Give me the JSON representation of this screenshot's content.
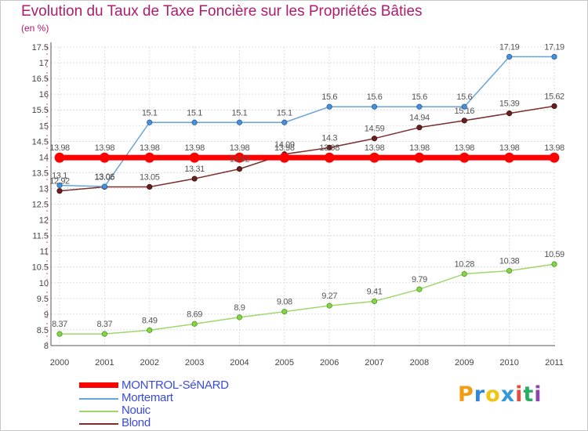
{
  "title": "Evolution du Taux de Taxe Foncière sur les Propriétés Bâties",
  "unit_label": "(en %)",
  "logo": {
    "text": "Proxiti",
    "letters": [
      "P",
      "r",
      "o",
      "x",
      "i",
      "t",
      "i"
    ],
    "colors": [
      "#f39c12",
      "#2e86de",
      "#f1c40f",
      "#3498db",
      "#e74c3c",
      "#27ae60",
      "#8e44ad"
    ]
  },
  "chart_data": {
    "type": "line",
    "title": "Evolution du Taux de Taxe Foncière sur les Propriétés Bâties",
    "ylabel": "(en %)",
    "xlabel": "",
    "x": [
      "2000",
      "2001",
      "2002",
      "2003",
      "2004",
      "2005",
      "2006",
      "2007",
      "2008",
      "2009",
      "2010",
      "2011"
    ],
    "ylim": [
      8,
      17.5
    ],
    "yticks": [
      "8",
      "8.5",
      "9",
      "9.5",
      "10",
      "10.5",
      "11",
      "11.5",
      "12",
      "12.5",
      "13",
      "13.5",
      "14",
      "14.5",
      "15",
      "15.5",
      "16",
      "16.5",
      "17",
      "17.5"
    ],
    "grid": true,
    "legend_position": "bottom-left",
    "series": [
      {
        "name": "MONTROL-SéNARD",
        "color": "#ff0000",
        "values": [
          13.98,
          13.98,
          13.98,
          13.98,
          13.98,
          13.98,
          13.98,
          13.98,
          13.98,
          13.98,
          13.98,
          13.98
        ],
        "labels": [
          "13.98",
          "13.98",
          "13.98",
          "13.98",
          "13.98",
          "13.98",
          "13.98",
          "13.98",
          "13.98",
          "13.98",
          "13.98",
          "13.98"
        ]
      },
      {
        "name": "Mortemart",
        "color": "#6aa3d8",
        "values": [
          13.1,
          13.06,
          15.1,
          15.1,
          15.1,
          15.1,
          15.6,
          15.6,
          15.6,
          15.6,
          17.19,
          17.19
        ],
        "labels": [
          "13.1",
          "13.06",
          "15.1",
          "15.1",
          "15.1",
          "15.1",
          "15.6",
          "15.6",
          "15.6",
          "15.6",
          "17.19",
          "17.19"
        ]
      },
      {
        "name": "Nouic",
        "color": "#9ed86a",
        "values": [
          8.37,
          8.37,
          8.49,
          8.69,
          8.9,
          9.08,
          9.27,
          9.41,
          9.79,
          10.28,
          10.38,
          10.59
        ],
        "labels": [
          "8.37",
          "8.37",
          "8.49",
          "8.69",
          "8.9",
          "9.08",
          "9.27",
          "9.41",
          "9.79",
          "10.28",
          "10.38",
          "10.59"
        ]
      },
      {
        "name": "Blond",
        "color": "#7a2e2e",
        "values": [
          12.92,
          13.05,
          13.05,
          13.31,
          13.62,
          14.09,
          14.3,
          14.59,
          14.94,
          15.16,
          15.39,
          15.62
        ],
        "labels": [
          "12.92",
          "13.05",
          "13.05",
          "13.31",
          "13.62",
          "14.09",
          "14.3",
          "14.59",
          "14.94",
          "15.16",
          "15.39",
          "15.62"
        ]
      }
    ]
  }
}
